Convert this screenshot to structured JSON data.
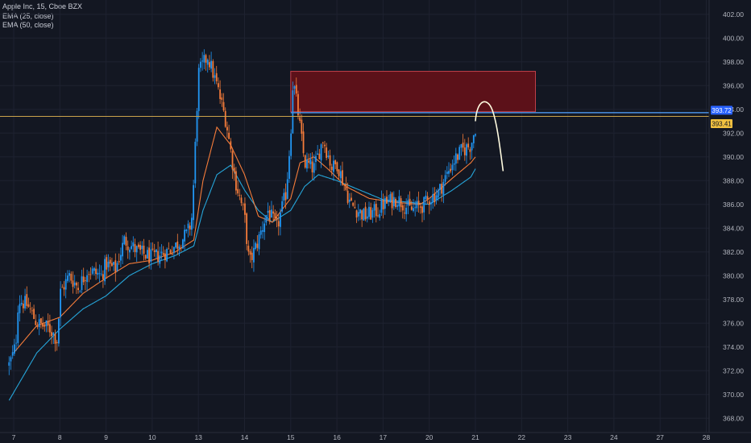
{
  "legend": {
    "symbol": "Apple Inc, 15, Cboe BZX",
    "ema25": "EMA (25, close)",
    "ema50": "EMA (50, close)"
  },
  "colors": {
    "background": "#131722",
    "up_candle": "#2196f3",
    "down_candle": "#f57c3a",
    "ema25": "#f57c3a",
    "ema50": "#26a5d9",
    "zone_fill": "#5c1119",
    "zone_border": "#c0404a",
    "resistance_line": "#4a90e2",
    "price_line": "#c9a24a",
    "projection": "#fffbe0",
    "axis_text": "#b2b5be",
    "resistance_label_bg": "#2962ff",
    "price_label_bg": "#f0c040"
  },
  "chart_data": {
    "type": "candlestick",
    "title": "Apple Inc, 15, Cboe BZX",
    "ylim": [
      367,
      403
    ],
    "y_ticks": [
      "368.00",
      "370.00",
      "372.00",
      "374.00",
      "376.00",
      "378.00",
      "380.00",
      "382.00",
      "384.00",
      "386.00",
      "388.00",
      "390.00",
      "392.00",
      "394.00",
      "396.00",
      "398.00",
      "400.00",
      "402.00"
    ],
    "x_ticks": [
      "7",
      "8",
      "9",
      "10",
      "13",
      "14",
      "15",
      "16",
      "17",
      "20",
      "21",
      "22",
      "23",
      "24",
      "27",
      "28"
    ],
    "grid": true,
    "price_anchors": [
      [
        6.9,
        372.5
      ],
      [
        7.0,
        373.5
      ],
      [
        7.05,
        374.5
      ],
      [
        7.1,
        378.0
      ],
      [
        7.3,
        377.5
      ],
      [
        7.5,
        376.0
      ],
      [
        7.8,
        375.5
      ],
      [
        7.95,
        374.5
      ],
      [
        8.0,
        378.5
      ],
      [
        8.2,
        380.0
      ],
      [
        8.4,
        379.0
      ],
      [
        8.6,
        380.5
      ],
      [
        8.9,
        380.0
      ],
      [
        9.0,
        381.0
      ],
      [
        9.2,
        380.5
      ],
      [
        9.4,
        383.0
      ],
      [
        9.7,
        382.0
      ],
      [
        10.0,
        381.5
      ],
      [
        10.3,
        382.0
      ],
      [
        10.5,
        382.5
      ],
      [
        10.75,
        383.5
      ],
      [
        10.85,
        384.5
      ],
      [
        10.9,
        388.0
      ],
      [
        11.0,
        397.0
      ],
      [
        11.2,
        398.5
      ],
      [
        11.4,
        396.0
      ],
      [
        11.6,
        393.0
      ],
      [
        11.8,
        388.0
      ],
      [
        12.0,
        385.0
      ],
      [
        12.1,
        381.0
      ],
      [
        12.3,
        383.0
      ],
      [
        12.5,
        385.5
      ],
      [
        12.7,
        384.0
      ],
      [
        12.9,
        387.0
      ],
      [
        13.0,
        392.0
      ],
      [
        13.05,
        396.5
      ],
      [
        13.15,
        394.0
      ],
      [
        13.3,
        389.5
      ],
      [
        13.5,
        389.0
      ],
      [
        13.7,
        391.5
      ],
      [
        13.9,
        389.0
      ],
      [
        14.0,
        389.5
      ],
      [
        14.3,
        386.0
      ],
      [
        14.6,
        385.0
      ],
      [
        14.9,
        385.5
      ],
      [
        15.0,
        386.0
      ],
      [
        15.3,
        386.5
      ],
      [
        15.6,
        385.5
      ],
      [
        15.9,
        386.0
      ],
      [
        16.0,
        386.5
      ],
      [
        16.2,
        387.0
      ],
      [
        16.5,
        389.5
      ],
      [
        16.7,
        390.5
      ],
      [
        16.9,
        391.0
      ],
      [
        17.0,
        392.5
      ]
    ],
    "ema25_anchors": [
      [
        7.0,
        373.5
      ],
      [
        7.5,
        375.8
      ],
      [
        8.0,
        376.5
      ],
      [
        8.5,
        378.5
      ],
      [
        9.0,
        379.8
      ],
      [
        9.5,
        381.0
      ],
      [
        10.0,
        381.3
      ],
      [
        10.5,
        382.0
      ],
      [
        10.9,
        383.0
      ],
      [
        11.1,
        388.0
      ],
      [
        11.4,
        392.5
      ],
      [
        11.7,
        391.0
      ],
      [
        12.0,
        388.5
      ],
      [
        12.3,
        385.0
      ],
      [
        12.6,
        384.5
      ],
      [
        13.0,
        386.5
      ],
      [
        13.2,
        389.5
      ],
      [
        13.5,
        390.0
      ],
      [
        13.8,
        389.0
      ],
      [
        14.2,
        387.5
      ],
      [
        14.7,
        386.5
      ],
      [
        15.2,
        386.2
      ],
      [
        15.8,
        386.0
      ],
      [
        16.0,
        386.5
      ],
      [
        16.5,
        388.2
      ],
      [
        16.9,
        389.5
      ],
      [
        17.0,
        390.0
      ]
    ],
    "ema50_anchors": [
      [
        6.9,
        369.5
      ],
      [
        7.5,
        373.5
      ],
      [
        8.0,
        375.5
      ],
      [
        8.5,
        377.2
      ],
      [
        9.0,
        378.3
      ],
      [
        9.5,
        380.0
      ],
      [
        10.0,
        381.0
      ],
      [
        10.5,
        381.7
      ],
      [
        10.9,
        382.5
      ],
      [
        11.1,
        385.5
      ],
      [
        11.4,
        388.5
      ],
      [
        11.7,
        389.3
      ],
      [
        12.0,
        387.2
      ],
      [
        12.3,
        385.5
      ],
      [
        12.6,
        384.5
      ],
      [
        13.0,
        385.5
      ],
      [
        13.3,
        387.5
      ],
      [
        13.6,
        388.5
      ],
      [
        14.0,
        388.0
      ],
      [
        14.5,
        387.2
      ],
      [
        15.0,
        386.4
      ],
      [
        15.5,
        386.2
      ],
      [
        16.0,
        386.0
      ],
      [
        16.5,
        387.2
      ],
      [
        16.9,
        388.3
      ],
      [
        17.0,
        389.0
      ]
    ],
    "supply_zone": {
      "x_from": 13.0,
      "x_to": 18.3,
      "y_low": 393.8,
      "y_high": 397.2
    },
    "resistance_level": 393.72,
    "last_price": 393.41,
    "price_labels": [
      "393.72",
      "393.41"
    ],
    "projection": {
      "start": [
        17.0,
        393.0
      ],
      "peak": [
        17.05,
        394.5
      ],
      "end": [
        17.6,
        388.8
      ]
    }
  }
}
